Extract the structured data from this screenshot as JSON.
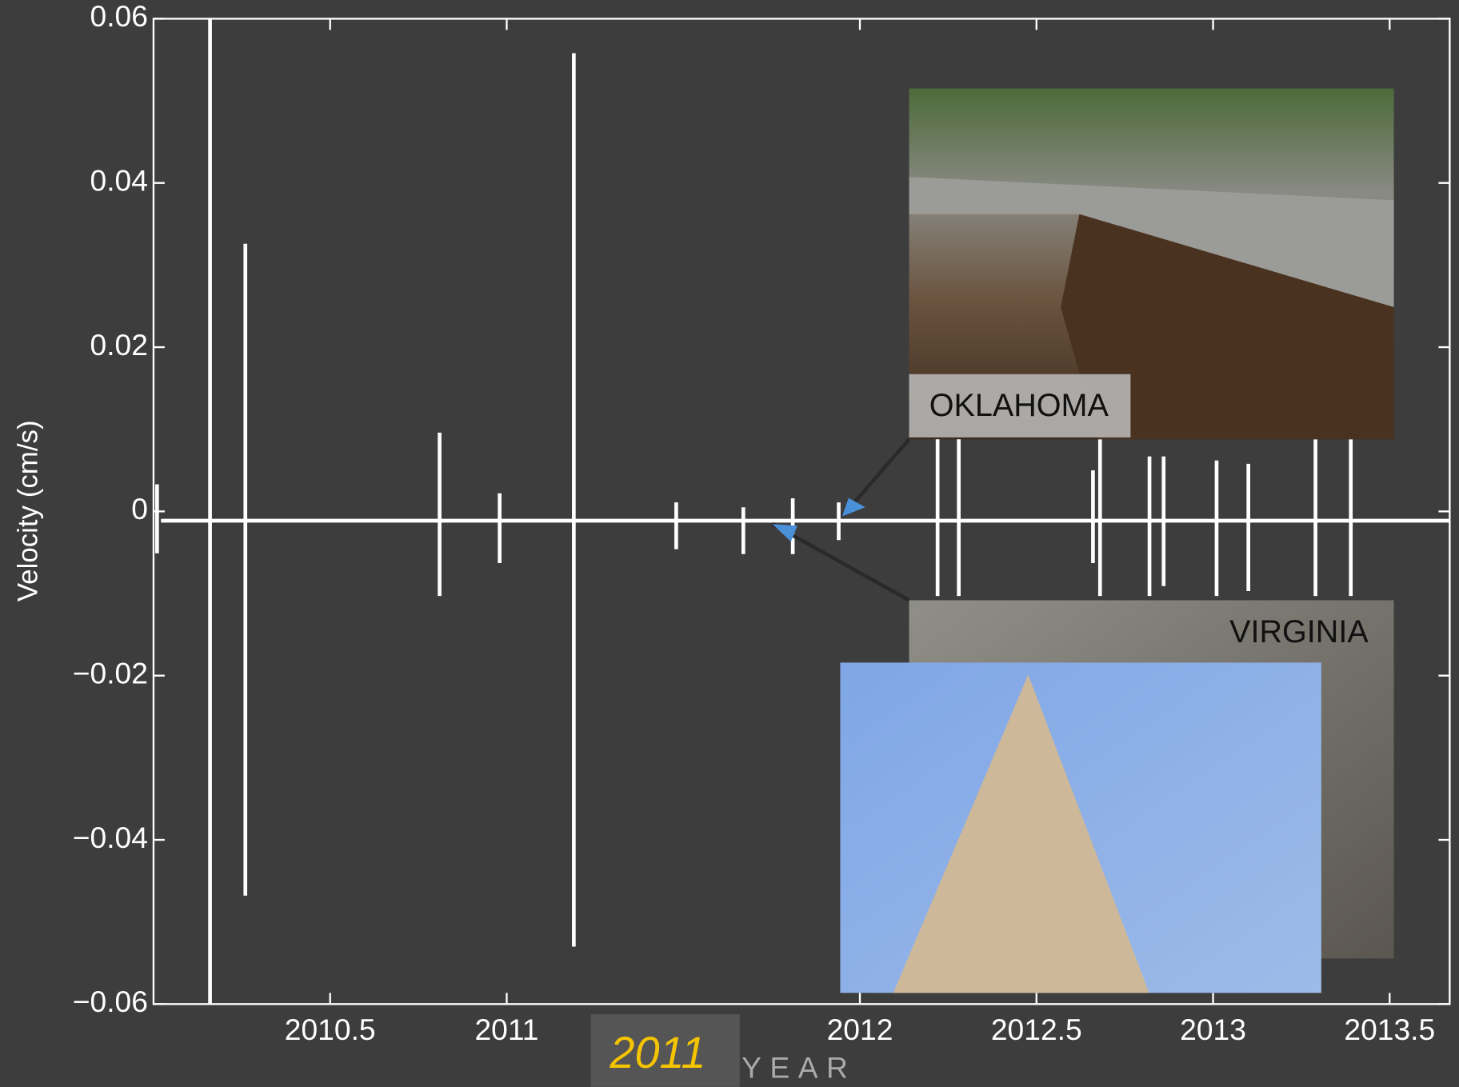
{
  "chart_data": {
    "type": "seismogram",
    "ylabel": "Velocity (cm/s)",
    "xlabel": "YEAR",
    "annotation": "2011",
    "photo_labels": [
      "OKLAHOMA",
      "VIRGINIA"
    ],
    "color": "#ffffff",
    "xlim": [
      2010,
      2013.67
    ],
    "ylim": [
      -0.06,
      0.06
    ],
    "xticks": [
      2010.5,
      2011,
      2012,
      2012.5,
      2013,
      2013.5
    ],
    "yticks": [
      {
        "value": -0.06,
        "label": "−0.06"
      },
      {
        "value": -0.04,
        "label": "−0.04"
      },
      {
        "value": -0.02,
        "label": "−0.02"
      },
      0,
      0.02,
      0.04,
      0.06
    ],
    "x": [
      2010.01,
      2010.16,
      2010.26,
      2010.81,
      2010.98,
      2011.19,
      2011.48,
      2011.67,
      2011.81,
      2011.94,
      2012.22,
      2012.28,
      2012.66,
      2012.68,
      2012.82,
      2012.86,
      2013.01,
      2013.1,
      2013.29,
      2013.39
    ],
    "max": [
      0.0033,
      0.06,
      0.0326,
      0.0096,
      0.0022,
      0.0558,
      0.0011,
      0.0005,
      0.0016,
      0.0011,
      0.0088,
      0.0088,
      0.005,
      0.0088,
      0.0067,
      0.0067,
      0.0062,
      0.0058,
      0.0088,
      0.0088
    ],
    "min": [
      -0.0051,
      -0.06,
      -0.0468,
      -0.0103,
      -0.0063,
      -0.053,
      -0.0046,
      -0.0052,
      -0.0052,
      -0.0035,
      -0.0103,
      -0.0103,
      -0.0063,
      -0.0103,
      -0.0103,
      -0.0091,
      -0.0103,
      -0.0097,
      -0.0103,
      -0.0103
    ]
  }
}
